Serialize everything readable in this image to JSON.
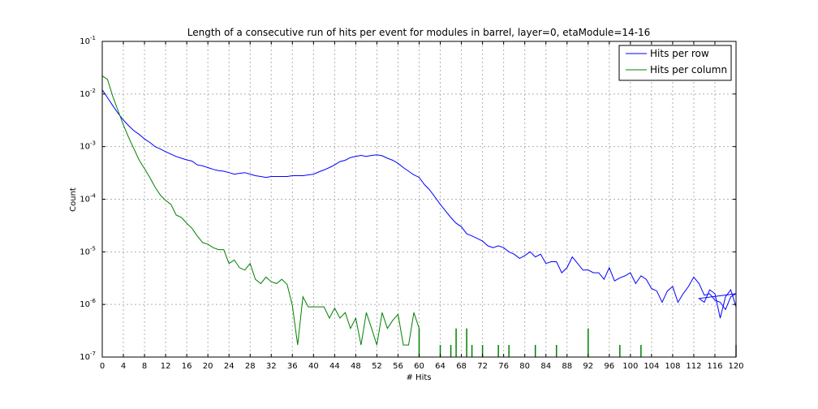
{
  "chart_data": {
    "type": "line",
    "title": "Length of a consecutive run of hits per event for modules in barrel, layer=0, etaModule=14-16",
    "xlabel": "# Hits",
    "ylabel": "Count",
    "xlim": [
      0,
      120
    ],
    "ylim": [
      1e-07,
      0.1
    ],
    "yscale": "log",
    "grid": true,
    "legend_position": "top-right",
    "x_ticks": [
      0,
      4,
      8,
      12,
      16,
      20,
      24,
      28,
      32,
      36,
      40,
      44,
      48,
      52,
      56,
      60,
      64,
      68,
      72,
      76,
      80,
      84,
      88,
      92,
      96,
      100,
      104,
      108,
      112,
      116,
      120
    ],
    "y_ticks": [
      {
        "base": "10",
        "exp": "-7",
        "value": 1e-07
      },
      {
        "base": "10",
        "exp": "-6",
        "value": 1e-06
      },
      {
        "base": "10",
        "exp": "-5",
        "value": 1e-05
      },
      {
        "base": "10",
        "exp": "-4",
        "value": 0.0001
      },
      {
        "base": "10",
        "exp": "-3",
        "value": 0.001
      },
      {
        "base": "10",
        "exp": "-2",
        "value": 0.01
      },
      {
        "base": "10",
        "exp": "-1",
        "value": 0.1
      }
    ],
    "series": [
      {
        "name": "Hits per row",
        "color": "#0000ff",
        "x": [
          0,
          1,
          2,
          3,
          4,
          5,
          6,
          7,
          8,
          9,
          10,
          11,
          12,
          13,
          14,
          15,
          16,
          17,
          18,
          19,
          20,
          21,
          22,
          23,
          24,
          25,
          26,
          27,
          28,
          29,
          30,
          31,
          32,
          33,
          34,
          35,
          36,
          37,
          38,
          39,
          40,
          41,
          42,
          43,
          44,
          45,
          46,
          47,
          48,
          49,
          50,
          51,
          52,
          53,
          54,
          55,
          56,
          57,
          58,
          59,
          60,
          61,
          62,
          63,
          64,
          65,
          66,
          67,
          68,
          69,
          70,
          71,
          72,
          73,
          74,
          75,
          76,
          77,
          78,
          79,
          80,
          81,
          82,
          83,
          84,
          85,
          86,
          87,
          88,
          89,
          90,
          91,
          92,
          93,
          94,
          95,
          96,
          97,
          98,
          99,
          100,
          101,
          102,
          103,
          104,
          105,
          106,
          107,
          108,
          109,
          110,
          111,
          112,
          113,
          114,
          115,
          116,
          117,
          118,
          119,
          120
        ],
        "y": [
          0.012,
          0.0085,
          0.006,
          0.0043,
          0.0032,
          0.0025,
          0.002,
          0.0017,
          0.0014,
          0.0012,
          0.001,
          0.0009,
          0.0008,
          0.00072,
          0.00065,
          0.0006,
          0.00056,
          0.00053,
          0.00045,
          0.00043,
          0.0004,
          0.00037,
          0.00035,
          0.00034,
          0.00032,
          0.0003,
          0.00031,
          0.00032,
          0.0003,
          0.00028,
          0.00027,
          0.00026,
          0.00027,
          0.00027,
          0.00027,
          0.00027,
          0.00028,
          0.00028,
          0.00028,
          0.00029,
          0.0003,
          0.00033,
          0.00036,
          0.0004,
          0.00045,
          0.00052,
          0.00055,
          0.00062,
          0.00065,
          0.00068,
          0.00065,
          0.00068,
          0.0007,
          0.00067,
          0.0006,
          0.00055,
          0.00048,
          0.0004,
          0.00034,
          0.00029,
          0.00026,
          0.00019,
          0.00015,
          0.00011,
          8e-05,
          6e-05,
          4.5e-05,
          3.5e-05,
          3e-05,
          2.2e-05,
          2e-05,
          1.8e-05,
          1.6e-05,
          1.3e-05,
          1.2e-05,
          1.3e-05,
          1.2e-05,
          1e-05,
          9e-06,
          7.5e-06,
          8.5e-06,
          1e-05,
          8e-06,
          9e-06,
          6e-06,
          6.5e-06,
          6.5e-06,
          4e-06,
          5e-06,
          8e-06,
          6e-06,
          4.5e-06,
          4.5e-06,
          4e-06,
          4e-06,
          3e-06,
          5e-06,
          2.8e-06,
          3.2e-06,
          3.5e-06,
          4e-06,
          2.5e-06,
          3.5e-06,
          3e-06,
          2e-06,
          1.8e-06,
          1.1e-06,
          1.8e-06,
          2.2e-06,
          1.1e-06,
          1.6e-06,
          2.2e-06,
          3.3e-06,
          2.5e-06,
          1.5e-06,
          1.6e-06,
          1.2e-06,
          1.1e-06,
          8e-07,
          1.4e-06,
          1.6e-06
        ],
        "x_end": [
          113,
          114,
          115,
          116,
          117,
          118,
          119,
          120
        ],
        "y_end": [
          1.3e-06,
          1.1e-06,
          1.9e-06,
          1.6e-06,
          5.5e-07,
          1.4e-06,
          1.9e-06,
          9e-07
        ]
      },
      {
        "name": "Hits per column",
        "color": "#008000",
        "x": [
          0,
          1,
          2,
          3,
          4,
          5,
          6,
          7,
          8,
          9,
          10,
          11,
          12,
          13,
          14,
          15,
          16,
          17,
          18,
          19,
          20,
          21,
          22,
          23,
          24,
          25,
          26,
          27,
          28,
          29,
          30,
          31,
          32,
          33,
          34,
          35,
          36,
          37,
          38,
          39,
          40,
          41,
          42,
          43,
          44,
          45,
          46,
          47,
          48,
          49,
          50,
          51,
          52,
          53,
          54,
          55,
          56,
          57,
          58,
          59,
          60
        ],
        "y": [
          0.022,
          0.019,
          0.009,
          0.0048,
          0.0026,
          0.0015,
          0.0009,
          0.00055,
          0.00038,
          0.00026,
          0.00017,
          0.00012,
          9.5e-05,
          8e-05,
          5e-05,
          4.5e-05,
          3.5e-05,
          2.8e-05,
          2e-05,
          1.5e-05,
          1.4e-05,
          1.2e-05,
          1.1e-05,
          1.1e-05,
          6e-06,
          7e-06,
          5e-06,
          4.5e-06,
          6e-06,
          3e-06,
          2.5e-06,
          3.3e-06,
          2.7e-06,
          2.5e-06,
          3e-06,
          2.4e-06,
          9.5e-07,
          1.7e-07,
          1.4e-06,
          9e-07,
          9e-07,
          9e-07,
          9e-07,
          5.5e-07,
          8.5e-07,
          5.5e-07,
          7e-07,
          3.5e-07,
          5.5e-07,
          1.7e-07,
          7e-07,
          3.5e-07,
          1.7e-07,
          7e-07,
          3.5e-07,
          5e-07,
          6.5e-07,
          1.7e-07,
          1.7e-07,
          7e-07,
          3.5e-07
        ],
        "spikes_x": [
          60,
          64,
          66,
          67,
          69,
          70,
          72,
          75,
          77,
          82,
          86,
          92,
          98,
          102,
          120
        ],
        "spikes_y": [
          3.5e-07,
          1.7e-07,
          1.7e-07,
          3.5e-07,
          3.5e-07,
          1.7e-07,
          1.7e-07,
          1.7e-07,
          1.7e-07,
          1.7e-07,
          1.7e-07,
          3.5e-07,
          1.7e-07,
          1.7e-07,
          1.7e-07
        ]
      }
    ]
  }
}
